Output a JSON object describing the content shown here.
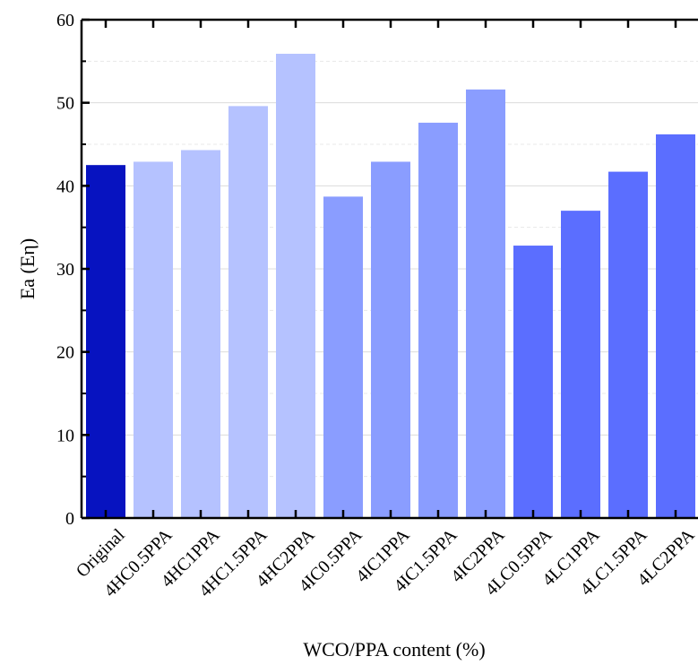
{
  "chart_data": {
    "type": "bar",
    "categories": [
      "Original",
      "4HC0.5PPA",
      "4HC1PPA",
      "4HC1.5PPA",
      "4HC2PPA",
      "4IC0.5PPA",
      "4IC1PPA",
      "4IC1.5PPA",
      "4IC2PPA",
      "4LC0.5PPA",
      "4LC1PPA",
      "4LC1.5PPA",
      "4LC2PPA"
    ],
    "values": [
      42.5,
      42.9,
      44.3,
      49.6,
      55.9,
      38.7,
      42.9,
      47.6,
      51.6,
      32.8,
      37.0,
      41.7,
      46.2
    ],
    "bar_colors": [
      "#0713c0",
      "#b5c2ff",
      "#b5c2ff",
      "#b5c2ff",
      "#b5c2ff",
      "#8a9dff",
      "#8a9dff",
      "#8a9dff",
      "#8a9dff",
      "#5b6eff",
      "#5b6eff",
      "#5b6eff",
      "#5b6eff"
    ],
    "title": "",
    "xlabel": "WCO/PPA content (%)",
    "ylabel": "Ea (Eη)",
    "ylim": [
      0,
      60
    ],
    "yticks": [
      "0",
      "10",
      "20",
      "30",
      "40",
      "50",
      "60"
    ],
    "grid": true
  }
}
